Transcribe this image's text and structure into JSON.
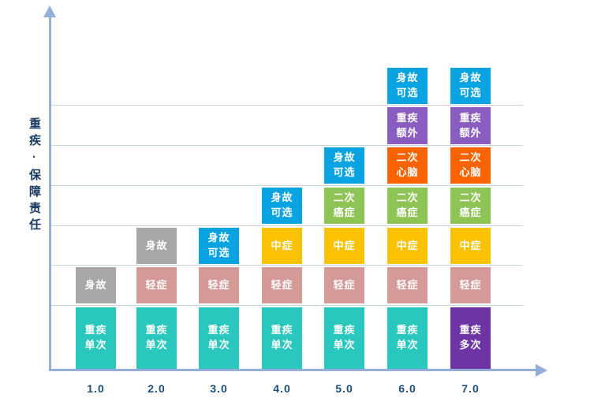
{
  "chart_data": {
    "type": "bar",
    "variant": "stacked-category-matrix",
    "title": "",
    "xlabel": "",
    "ylabel": "重疾·保障责任",
    "categories": [
      "1.0",
      "2.0",
      "3.0",
      "4.0",
      "5.0",
      "6.0",
      "7.0"
    ],
    "grid": "horizontal",
    "legend": "none",
    "ylim_bands": 7,
    "palette": {
      "teal": "#29c7bd",
      "gray": "#a7a7a7",
      "pink": "#d59a98",
      "blue": "#0aa3e2",
      "yellow": "#fcc101",
      "green": "#8dc455",
      "orange": "#f96301",
      "purple": "#8a5ec0",
      "dark_purple": "#6e34a3",
      "axis": "#93aed8",
      "gridline": "#c6d4e1",
      "tick_label": "#1f4e79",
      "ylabel": "#17375e"
    },
    "columns": [
      {
        "category": "1.0",
        "segments": [
          {
            "id": "critical-illness-single",
            "label": "重疾单次",
            "lines": [
              "重疾",
              "单次"
            ],
            "band": 0,
            "color": "teal"
          },
          {
            "id": "death",
            "label": "身故",
            "lines": [
              "身故"
            ],
            "band": 1,
            "color": "gray"
          }
        ]
      },
      {
        "category": "2.0",
        "segments": [
          {
            "id": "critical-illness-single",
            "label": "重疾单次",
            "lines": [
              "重疾",
              "单次"
            ],
            "band": 0,
            "color": "teal"
          },
          {
            "id": "mild-illness",
            "label": "轻症",
            "lines": [
              "轻症"
            ],
            "band": 1,
            "color": "pink"
          },
          {
            "id": "death",
            "label": "身故",
            "lines": [
              "身故"
            ],
            "band": 2,
            "color": "gray"
          }
        ]
      },
      {
        "category": "3.0",
        "segments": [
          {
            "id": "critical-illness-single",
            "label": "重疾单次",
            "lines": [
              "重疾",
              "单次"
            ],
            "band": 0,
            "color": "teal"
          },
          {
            "id": "mild-illness",
            "label": "轻症",
            "lines": [
              "轻症"
            ],
            "band": 1,
            "color": "pink"
          },
          {
            "id": "death-optional",
            "label": "身故可选",
            "lines": [
              "身故",
              "可选"
            ],
            "band": 2,
            "color": "blue"
          }
        ]
      },
      {
        "category": "4.0",
        "segments": [
          {
            "id": "critical-illness-single",
            "label": "重疾单次",
            "lines": [
              "重疾",
              "单次"
            ],
            "band": 0,
            "color": "teal"
          },
          {
            "id": "mild-illness",
            "label": "轻症",
            "lines": [
              "轻症"
            ],
            "band": 1,
            "color": "pink"
          },
          {
            "id": "moderate-illness",
            "label": "中症",
            "lines": [
              "中症"
            ],
            "band": 2,
            "color": "yellow"
          },
          {
            "id": "death-optional",
            "label": "身故可选",
            "lines": [
              "身故",
              "可选"
            ],
            "band": 3,
            "color": "blue"
          }
        ]
      },
      {
        "category": "5.0",
        "segments": [
          {
            "id": "critical-illness-single",
            "label": "重疾单次",
            "lines": [
              "重疾",
              "单次"
            ],
            "band": 0,
            "color": "teal"
          },
          {
            "id": "mild-illness",
            "label": "轻症",
            "lines": [
              "轻症"
            ],
            "band": 1,
            "color": "pink"
          },
          {
            "id": "moderate-illness",
            "label": "中症",
            "lines": [
              "中症"
            ],
            "band": 2,
            "color": "yellow"
          },
          {
            "id": "second-cancer",
            "label": "二次癌症",
            "lines": [
              "二次",
              "癌症"
            ],
            "band": 3,
            "color": "green"
          },
          {
            "id": "death-optional",
            "label": "身故可选",
            "lines": [
              "身故",
              "可选"
            ],
            "band": 4,
            "color": "blue"
          }
        ]
      },
      {
        "category": "6.0",
        "segments": [
          {
            "id": "critical-illness-single",
            "label": "重疾单次",
            "lines": [
              "重疾",
              "单次"
            ],
            "band": 0,
            "color": "teal"
          },
          {
            "id": "mild-illness",
            "label": "轻症",
            "lines": [
              "轻症"
            ],
            "band": 1,
            "color": "pink"
          },
          {
            "id": "moderate-illness",
            "label": "中症",
            "lines": [
              "中症"
            ],
            "band": 2,
            "color": "yellow"
          },
          {
            "id": "second-cancer",
            "label": "二次癌症",
            "lines": [
              "二次",
              "癌症"
            ],
            "band": 3,
            "color": "green"
          },
          {
            "id": "second-cardio",
            "label": "二次心脑",
            "lines": [
              "二次",
              "心脑"
            ],
            "band": 4,
            "color": "orange"
          },
          {
            "id": "extra-critical",
            "label": "重疾额外",
            "lines": [
              "重疾",
              "额外"
            ],
            "band": 5,
            "color": "purple"
          },
          {
            "id": "death-optional",
            "label": "身故可选",
            "lines": [
              "身故",
              "可选"
            ],
            "band": 6,
            "color": "blue"
          }
        ]
      },
      {
        "category": "7.0",
        "segments": [
          {
            "id": "critical-illness-multiple",
            "label": "重疾多次",
            "lines": [
              "重疾",
              "多次"
            ],
            "band": 0,
            "color": "dark_purple"
          },
          {
            "id": "mild-illness",
            "label": "轻症",
            "lines": [
              "轻症"
            ],
            "band": 1,
            "color": "pink"
          },
          {
            "id": "moderate-illness",
            "label": "中症",
            "lines": [
              "中症"
            ],
            "band": 2,
            "color": "yellow"
          },
          {
            "id": "second-cancer",
            "label": "二次癌症",
            "lines": [
              "二次",
              "癌症"
            ],
            "band": 3,
            "color": "green"
          },
          {
            "id": "second-cardio",
            "label": "二次心脑",
            "lines": [
              "二次",
              "心脑"
            ],
            "band": 4,
            "color": "orange"
          },
          {
            "id": "extra-critical",
            "label": "重疾额外",
            "lines": [
              "重疾",
              "额外"
            ],
            "band": 5,
            "color": "purple"
          },
          {
            "id": "death-optional",
            "label": "身故可选",
            "lines": [
              "身故",
              "可选"
            ],
            "band": 6,
            "color": "blue"
          }
        ]
      }
    ]
  }
}
